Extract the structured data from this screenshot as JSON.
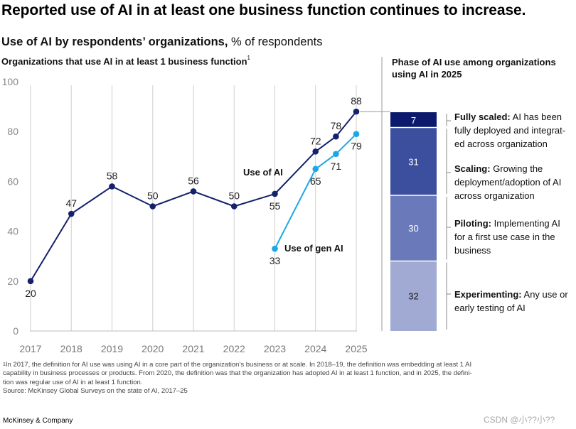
{
  "title": "Reported use of AI in at least one business function continues to increase.",
  "subtitle": {
    "bold": "Use of AI by respondents’ organizations,",
    "normal": " % of respondents"
  },
  "left_heading": {
    "text": "Organizations that use AI in at least 1 business function",
    "sup": "1"
  },
  "right_heading": "Phase of AI use among organizations using AI in 2025",
  "colors": {
    "ai": "#14216b",
    "gen_ai": "#1ca7e6",
    "bar_fully_scaled": "#0c1a6e",
    "bar_scaling": "#3b4f9e",
    "bar_piloting": "#6979b9",
    "bar_experimenting": "#a0aad2",
    "grid": "#cfcfcf",
    "axis_text": "#888888"
  },
  "chart_data": [
    {
      "type": "line",
      "y_ticks": [
        "100",
        "80",
        "60",
        "40",
        "20",
        "0"
      ],
      "x_ticks": [
        "2017",
        "2018",
        "2019",
        "2020",
        "2021",
        "2022",
        "2023",
        "2024",
        "2025"
      ],
      "ylim": [
        0,
        100
      ],
      "grid": "vertical lines at each year",
      "series": [
        {
          "name": "Use of AI",
          "points": [
            {
              "x": 2017,
              "y": 20,
              "label": "20",
              "pos": "below"
            },
            {
              "x": 2018,
              "y": 47,
              "label": "47",
              "pos": "above"
            },
            {
              "x": 2019,
              "y": 58,
              "label": "58",
              "pos": "above"
            },
            {
              "x": 2020,
              "y": 50,
              "label": "50",
              "pos": "above"
            },
            {
              "x": 2021,
              "y": 56,
              "label": "56",
              "pos": "above"
            },
            {
              "x": 2022,
              "y": 50,
              "label": "50",
              "pos": "above"
            },
            {
              "x": 2023,
              "y": 55,
              "label": "55",
              "pos": "below"
            },
            {
              "x": 2024,
              "y": 72,
              "label": "72",
              "pos": "above"
            },
            {
              "x": 2024.5,
              "y": 78,
              "label": "78",
              "pos": "above"
            },
            {
              "x": 2025,
              "y": 88,
              "label": "88",
              "pos": "above"
            }
          ]
        },
        {
          "name": "Use of gen AI",
          "points": [
            {
              "x": 2023,
              "y": 33,
              "label": "33",
              "pos": "below"
            },
            {
              "x": 2024,
              "y": 65,
              "label": "65",
              "pos": "below"
            },
            {
              "x": 2024.5,
              "y": 71,
              "label": "71",
              "pos": "below"
            },
            {
              "x": 2025,
              "y": 79,
              "label": "79",
              "pos": "below"
            }
          ]
        }
      ]
    },
    {
      "type": "bar",
      "stacked": true,
      "segments": [
        {
          "name": "Fully scaled",
          "value": 7,
          "label": "7"
        },
        {
          "name": "Scaling",
          "value": 31,
          "label": "31"
        },
        {
          "name": "Piloting",
          "value": 30,
          "label": "30"
        },
        {
          "name": "Experimenting",
          "value": 32,
          "label": "32"
        }
      ]
    }
  ],
  "phases": [
    {
      "title": "Fully scaled:",
      "desc": " AI has been fully deployed and integrat-ed across organization"
    },
    {
      "title": "Scaling:",
      "desc": " Growing the deployment/adoption of AI across organization"
    },
    {
      "title": "Piloting:",
      "desc": " Implementing AI for a first use case in the business"
    },
    {
      "title": "Experimenting:",
      "desc": " Any use or early testing of AI"
    }
  ],
  "footnotes": [
    "In 2017, the definition for AI use was using AI in a core part of the organization’s business or at scale. In 2018–19, the definition was embedding at least 1 AI",
    " capability in business processes or products. From 2020, the definition was that the organization has adopted AI in at least 1 function, and in 2025, the defini-",
    " tion was regular use of AI in at least 1 function.",
    "Source: McKinsey Global Surveys on the state of AI, 2017–25"
  ],
  "footnote_mark": "1",
  "brand": "McKinsey & Company",
  "watermark": "CSDN @小??小??"
}
